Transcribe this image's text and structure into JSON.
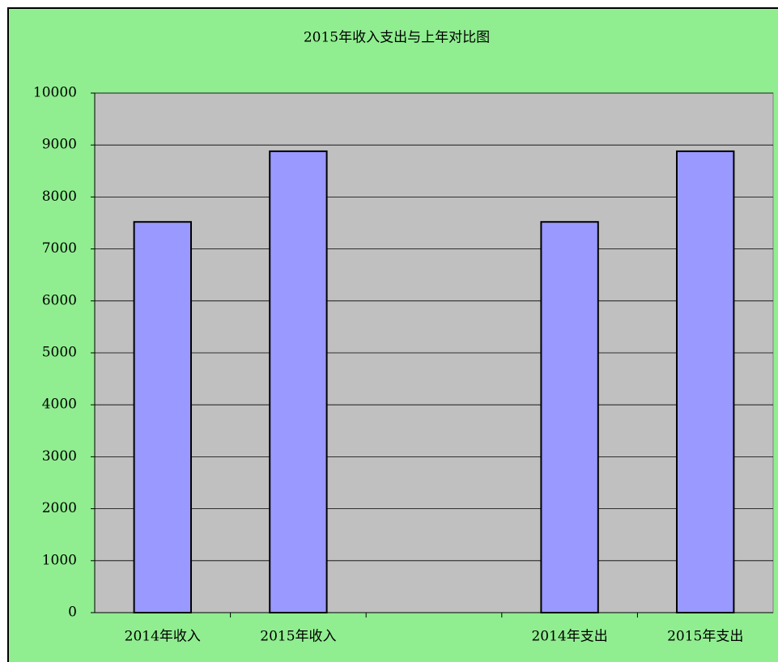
{
  "chart_data": {
    "type": "bar",
    "title": "2015年收入支出与上年对比图",
    "categories": [
      "2014年收入",
      "2015年收入",
      null,
      "2014年支出",
      "2015年支出"
    ],
    "values": [
      7520,
      8880,
      null,
      7520,
      8880
    ],
    "color": "#9999ff",
    "ylim": [
      0,
      10000
    ],
    "yticks": [
      0,
      1000,
      2000,
      3000,
      4000,
      5000,
      6000,
      7000,
      8000,
      9000,
      10000
    ],
    "grid": true
  }
}
